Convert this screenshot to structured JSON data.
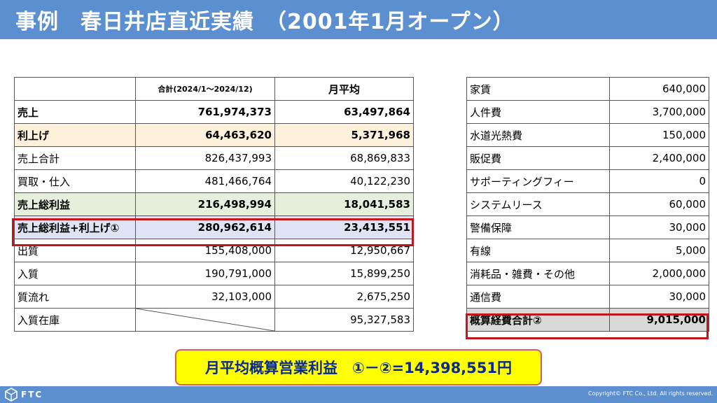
{
  "header": {
    "title": "事例　春日井店直近実績　（2001年1月オープン）"
  },
  "left_table": {
    "columns": [
      "",
      "合計(2024/1～2024/12)",
      "月平均"
    ],
    "rows": [
      {
        "label": "売上",
        "total": "761,974,373",
        "avg": "63,497,864"
      },
      {
        "label": "利上げ",
        "total": "64,463,620",
        "avg": "5,371,968"
      },
      {
        "label": "売上合計",
        "total": "826,437,993",
        "avg": "68,869,833"
      },
      {
        "label": "買取・仕入",
        "total": "481,466,764",
        "avg": "40,122,230"
      },
      {
        "label": "売上総利益",
        "total": "216,498,994",
        "avg": "18,041,583"
      },
      {
        "label": "売上総利益+利上げ①",
        "total": "280,962,614",
        "avg": "23,413,551"
      },
      {
        "label": "出質",
        "total": "155,408,000",
        "avg": "12,950,667"
      },
      {
        "label": "入質",
        "total": "190,791,000",
        "avg": "15,899,250"
      },
      {
        "label": "質流れ",
        "total": "32,103,000",
        "avg": "2,675,250"
      },
      {
        "label": "入質在庫",
        "total": "",
        "avg": "95,327,583"
      }
    ]
  },
  "right_table": {
    "rows": [
      {
        "label": "家賃",
        "value": "640,000"
      },
      {
        "label": "人件費",
        "value": "3,700,000"
      },
      {
        "label": "水道光熱費",
        "value": "150,000"
      },
      {
        "label": "販促費",
        "value": "2,400,000"
      },
      {
        "label": "サポーティングフィー",
        "value": "0"
      },
      {
        "label": "システムリース",
        "value": "60,000"
      },
      {
        "label": "警備保障",
        "value": "30,000"
      },
      {
        "label": "有線",
        "value": "5,000"
      },
      {
        "label": "消耗品・雑費・その他",
        "value": "2,000,000"
      },
      {
        "label": "通信費",
        "value": "30,000"
      },
      {
        "label": "概算経費合計②",
        "value": "9,015,000"
      }
    ]
  },
  "result": {
    "text": "月平均概算営業利益　①－②=14,398,551円"
  },
  "footer": {
    "logo": "FTC",
    "copyright": "Copyright© FTC Co., Ltd. All rights reserved."
  },
  "colors": {
    "header": "#5b8fcf",
    "highlight_border": "#c0161d",
    "result_bg": "#ffff00",
    "result_text": "#0a2a8c"
  }
}
